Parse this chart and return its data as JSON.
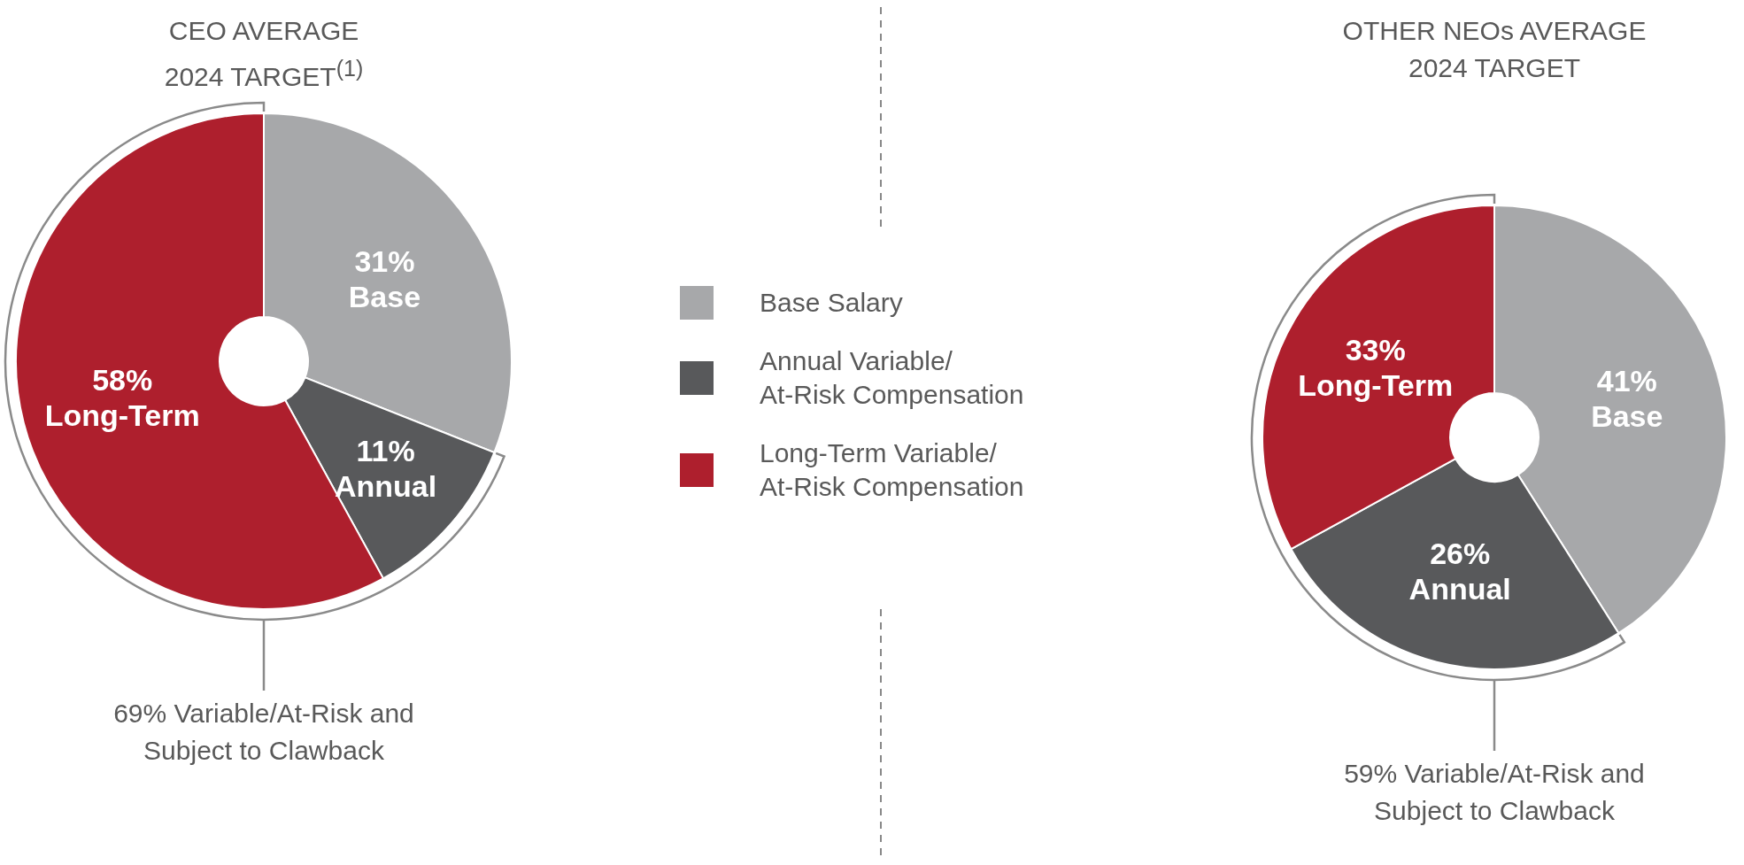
{
  "chart_data": [
    {
      "type": "donut",
      "title": "CEO AVERAGE 2024 TARGET$^{(1)}$",
      "categories": [
        "Base Salary",
        "Annual Variable/ At-Risk Compensation",
        "Long-Term Variable/ At-Risk Compensation"
      ],
      "values": [
        31,
        11,
        58
      ],
      "colors": [
        "#a7a8aa",
        "#58595b",
        "#ae1f2d"
      ],
      "value_labels": [
        "31% Base",
        "11% Annual",
        "58% Long-Term"
      ],
      "annotations": [
        "69% Variable/At-Risk and Subject to Clawback"
      ],
      "legend": "right"
    },
    {
      "type": "donut",
      "title": "OTHER NEOs AVERAGE 2024 TARGET",
      "categories": [
        null,
        null,
        null
      ],
      "values": [
        41,
        26,
        33
      ],
      "colors": [
        "#a7a8aa",
        "#58595b",
        "#ae1f2d"
      ],
      "value_labels": [
        "41% Base",
        "26% Annual",
        "33% Long-Term"
      ],
      "annotations": [
        "59% Variable/At-Risk and Subject to Clawback"
      ]
    }
  ]
}
